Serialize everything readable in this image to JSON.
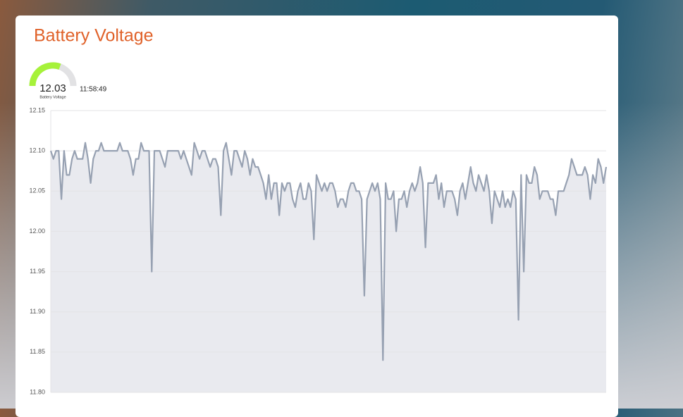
{
  "header": {
    "title": "Battery Voltage"
  },
  "gauge": {
    "value": "12.03",
    "label": "Battery Voltage",
    "time": "11:58:49"
  },
  "chart_data": {
    "type": "area",
    "color": "#97a1b2",
    "fill": "#e9eaef",
    "grid": true,
    "ylim": [
      11.8,
      12.15
    ],
    "yticks": [
      {
        "value": 11.8,
        "label": "11.80"
      },
      {
        "value": 11.85,
        "label": "11.85"
      },
      {
        "value": 11.9,
        "label": "11.90"
      },
      {
        "value": 11.95,
        "label": "11.95"
      },
      {
        "value": 12.0,
        "label": "12.00"
      },
      {
        "value": 12.05,
        "label": "12.05"
      },
      {
        "value": 12.1,
        "label": "12.10"
      },
      {
        "value": 12.15,
        "label": "12.15"
      }
    ],
    "values": [
      12.1,
      12.09,
      12.1,
      12.1,
      12.04,
      12.1,
      12.07,
      12.07,
      12.09,
      12.1,
      12.09,
      12.09,
      12.09,
      12.11,
      12.09,
      12.06,
      12.09,
      12.1,
      12.1,
      12.11,
      12.1,
      12.1,
      12.1,
      12.1,
      12.1,
      12.1,
      12.11,
      12.1,
      12.1,
      12.1,
      12.09,
      12.07,
      12.09,
      12.09,
      12.11,
      12.1,
      12.1,
      12.1,
      11.95,
      12.1,
      12.1,
      12.1,
      12.09,
      12.08,
      12.1,
      12.1,
      12.1,
      12.1,
      12.1,
      12.09,
      12.1,
      12.09,
      12.08,
      12.07,
      12.11,
      12.1,
      12.09,
      12.1,
      12.1,
      12.09,
      12.08,
      12.09,
      12.09,
      12.08,
      12.02,
      12.1,
      12.11,
      12.09,
      12.07,
      12.1,
      12.1,
      12.09,
      12.08,
      12.1,
      12.09,
      12.07,
      12.09,
      12.08,
      12.08,
      12.07,
      12.06,
      12.04,
      12.07,
      12.04,
      12.06,
      12.06,
      12.02,
      12.06,
      12.05,
      12.06,
      12.06,
      12.04,
      12.03,
      12.05,
      12.06,
      12.04,
      12.04,
      12.06,
      12.05,
      11.99,
      12.07,
      12.06,
      12.05,
      12.06,
      12.05,
      12.06,
      12.06,
      12.05,
      12.03,
      12.04,
      12.04,
      12.03,
      12.05,
      12.06,
      12.06,
      12.05,
      12.05,
      12.04,
      11.92,
      12.04,
      12.05,
      12.06,
      12.05,
      12.06,
      12.04,
      11.84,
      12.06,
      12.04,
      12.04,
      12.05,
      12.0,
      12.04,
      12.04,
      12.05,
      12.03,
      12.05,
      12.06,
      12.05,
      12.06,
      12.08,
      12.06,
      11.98,
      12.06,
      12.06,
      12.06,
      12.07,
      12.04,
      12.06,
      12.03,
      12.05,
      12.05,
      12.05,
      12.04,
      12.02,
      12.05,
      12.06,
      12.04,
      12.06,
      12.08,
      12.06,
      12.05,
      12.07,
      12.06,
      12.05,
      12.07,
      12.05,
      12.01,
      12.05,
      12.04,
      12.03,
      12.05,
      12.03,
      12.04,
      12.03,
      12.05,
      12.04,
      11.89,
      12.07,
      11.95,
      12.07,
      12.06,
      12.06,
      12.08,
      12.07,
      12.04,
      12.05,
      12.05,
      12.05,
      12.04,
      12.04,
      12.02,
      12.05,
      12.05,
      12.05,
      12.06,
      12.07,
      12.09,
      12.08,
      12.07,
      12.07,
      12.07,
      12.08,
      12.07,
      12.04,
      12.07,
      12.06,
      12.09,
      12.08,
      12.06,
      12.08
    ]
  }
}
